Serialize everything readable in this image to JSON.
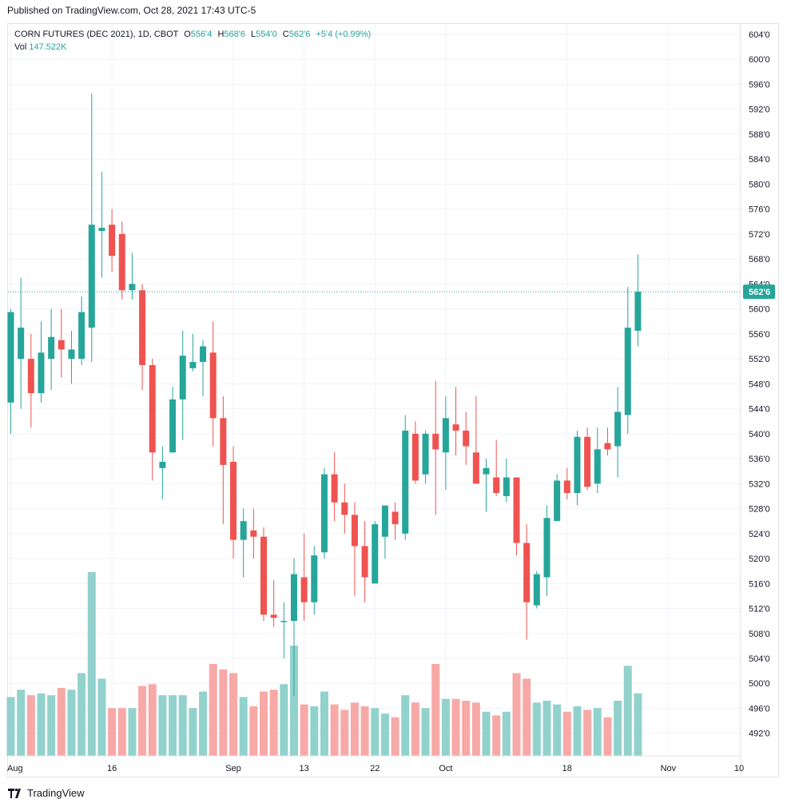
{
  "header": {
    "published": "Published on TradingView.com, Oct 28, 2021 17:43 UTC-5"
  },
  "legend": {
    "symbol": "CORN FUTURES (DEC 2021), 1D, CBOT",
    "o_label": "O",
    "o_value": "556'4",
    "h_label": "H",
    "h_value": "568'6",
    "l_label": "L",
    "l_value": "554'0",
    "c_label": "C",
    "c_value": "562'6",
    "change": "+5'4 (+0.99%)",
    "vol_label": "Vol",
    "vol_value": "147.522K"
  },
  "footer": {
    "brand": "TradingView"
  },
  "colors": {
    "up": "#26a69a",
    "down": "#ef5350",
    "vol_up": "#92d2cc",
    "vol_down": "#f7a9a7",
    "grid": "#f0f3fa"
  },
  "chart_data": {
    "type": "candlestick",
    "symbol": "CORN FUTURES (DEC 2021)",
    "interval": "1D",
    "exchange": "CBOT",
    "last_price_label": "562'6",
    "last_price": 562.75,
    "ylim": [
      489,
      605
    ],
    "y_ticks": [
      604,
      600,
      596,
      592,
      588,
      584,
      580,
      576,
      572,
      568,
      564,
      560,
      556,
      552,
      548,
      544,
      540,
      536,
      532,
      528,
      524,
      520,
      516,
      512,
      508,
      504,
      500,
      496,
      492
    ],
    "y_tick_labels": [
      "604'0",
      "600'0",
      "596'0",
      "592'0",
      "588'0",
      "584'0",
      "580'0",
      "576'0",
      "572'0",
      "568'0",
      "564'0",
      "560'0",
      "556'0",
      "552'0",
      "548'0",
      "544'0",
      "540'0",
      "536'0",
      "532'0",
      "528'0",
      "524'0",
      "520'0",
      "516'0",
      "512'0",
      "508'0",
      "504'0",
      "500'0",
      "496'0",
      "492'0"
    ],
    "x_ticks": [
      {
        "label": "Aug",
        "index": 0
      },
      {
        "label": "16",
        "index": 10
      },
      {
        "label": "Sep",
        "index": 22
      },
      {
        "label": "13",
        "index": 29
      },
      {
        "label": "22",
        "index": 36
      },
      {
        "label": "Oct",
        "index": 43
      },
      {
        "label": "18",
        "index": 55
      },
      {
        "label": "Nov",
        "index": 65
      },
      {
        "label": "10",
        "index": 72
      }
    ],
    "candles": [
      {
        "o": 545,
        "h": 560,
        "l": 540,
        "c": 559.5,
        "v": 0.32
      },
      {
        "o": 552,
        "h": 565,
        "l": 544,
        "c": 557,
        "v": 0.36
      },
      {
        "o": 552,
        "h": 556,
        "l": 541,
        "c": 546.5,
        "v": 0.33
      },
      {
        "o": 546.5,
        "h": 558,
        "l": 545,
        "c": 553,
        "v": 0.34
      },
      {
        "o": 552,
        "h": 560,
        "l": 547,
        "c": 555.5,
        "v": 0.33
      },
      {
        "o": 555,
        "h": 560,
        "l": 549,
        "c": 553.5,
        "v": 0.37
      },
      {
        "o": 552,
        "h": 556.5,
        "l": 548,
        "c": 553.5,
        "v": 0.36
      },
      {
        "o": 552,
        "h": 562,
        "l": 551,
        "c": 559.5,
        "v": 0.45
      },
      {
        "o": 557,
        "h": 594.5,
        "l": 551.5,
        "c": 573.5,
        "v": 1.0
      },
      {
        "o": 572.5,
        "h": 582,
        "l": 565,
        "c": 573,
        "v": 0.42
      },
      {
        "o": 573.5,
        "h": 576,
        "l": 566,
        "c": 568.5,
        "v": 0.26
      },
      {
        "o": 572,
        "h": 574,
        "l": 561.5,
        "c": 563,
        "v": 0.26
      },
      {
        "o": 563,
        "h": 569,
        "l": 561.5,
        "c": 564,
        "v": 0.26
      },
      {
        "o": 563,
        "h": 564,
        "l": 547,
        "c": 551,
        "v": 0.38
      },
      {
        "o": 551,
        "h": 552,
        "l": 532.5,
        "c": 537,
        "v": 0.39
      },
      {
        "o": 534.5,
        "h": 538,
        "l": 529.5,
        "c": 535.5,
        "v": 0.33
      },
      {
        "o": 537,
        "h": 547.5,
        "l": 537,
        "c": 545.5,
        "v": 0.33
      },
      {
        "o": 545.5,
        "h": 556.5,
        "l": 539,
        "c": 552.5,
        "v": 0.33
      },
      {
        "o": 550.5,
        "h": 556,
        "l": 550,
        "c": 551.5,
        "v": 0.26
      },
      {
        "o": 551.5,
        "h": 555,
        "l": 546,
        "c": 554,
        "v": 0.35
      },
      {
        "o": 553,
        "h": 558,
        "l": 538,
        "c": 542.5,
        "v": 0.5
      },
      {
        "o": 542.5,
        "h": 546,
        "l": 525.5,
        "c": 535,
        "v": 0.47
      },
      {
        "o": 535.5,
        "h": 538,
        "l": 520,
        "c": 523,
        "v": 0.45
      },
      {
        "o": 523,
        "h": 528,
        "l": 517,
        "c": 526,
        "v": 0.32
      },
      {
        "o": 524.5,
        "h": 528,
        "l": 520,
        "c": 523.5,
        "v": 0.27
      },
      {
        "o": 523.5,
        "h": 525,
        "l": 510,
        "c": 511,
        "v": 0.35
      },
      {
        "o": 511,
        "h": 516.5,
        "l": 509,
        "c": 510.5,
        "v": 0.36
      },
      {
        "o": 510,
        "h": 513,
        "l": 504,
        "c": 510,
        "v": 0.39
      },
      {
        "o": 510,
        "h": 520,
        "l": 498,
        "c": 517.5,
        "v": 0.6
      },
      {
        "o": 517,
        "h": 524,
        "l": 510,
        "c": 513,
        "v": 0.28
      },
      {
        "o": 513,
        "h": 522,
        "l": 511,
        "c": 520.5,
        "v": 0.27
      },
      {
        "o": 521,
        "h": 534.5,
        "l": 520,
        "c": 533.5,
        "v": 0.35
      },
      {
        "o": 533.5,
        "h": 537,
        "l": 526,
        "c": 529,
        "v": 0.28
      },
      {
        "o": 529,
        "h": 532,
        "l": 524,
        "c": 527,
        "v": 0.25
      },
      {
        "o": 527,
        "h": 529,
        "l": 514,
        "c": 522,
        "v": 0.29
      },
      {
        "o": 522,
        "h": 526,
        "l": 513,
        "c": 517,
        "v": 0.27
      },
      {
        "o": 516,
        "h": 526,
        "l": 516,
        "c": 525.5,
        "v": 0.26
      },
      {
        "o": 523.5,
        "h": 528.5,
        "l": 520,
        "c": 528.5,
        "v": 0.23
      },
      {
        "o": 527.5,
        "h": 529,
        "l": 523,
        "c": 525.5,
        "v": 0.21
      },
      {
        "o": 524,
        "h": 543,
        "l": 523,
        "c": 540.5,
        "v": 0.33
      },
      {
        "o": 540,
        "h": 542,
        "l": 532,
        "c": 532.5,
        "v": 0.29
      },
      {
        "o": 533.5,
        "h": 540.5,
        "l": 532,
        "c": 540,
        "v": 0.26
      },
      {
        "o": 540,
        "h": 548.5,
        "l": 527,
        "c": 537.5,
        "v": 0.5
      },
      {
        "o": 537,
        "h": 546,
        "l": 531,
        "c": 542.5,
        "v": 0.31
      },
      {
        "o": 541.5,
        "h": 547.5,
        "l": 536.5,
        "c": 540.5,
        "v": 0.31
      },
      {
        "o": 540.5,
        "h": 543.5,
        "l": 535,
        "c": 538,
        "v": 0.3
      },
      {
        "o": 537,
        "h": 546,
        "l": 532,
        "c": 532,
        "v": 0.29
      },
      {
        "o": 533.5,
        "h": 536,
        "l": 527.5,
        "c": 534.5,
        "v": 0.24
      },
      {
        "o": 533,
        "h": 539,
        "l": 530,
        "c": 530.5,
        "v": 0.22
      },
      {
        "o": 530,
        "h": 536,
        "l": 529,
        "c": 533,
        "v": 0.24
      },
      {
        "o": 533,
        "h": 533,
        "l": 520.5,
        "c": 522.5,
        "v": 0.45
      },
      {
        "o": 522.5,
        "h": 525.5,
        "l": 507,
        "c": 513,
        "v": 0.42
      },
      {
        "o": 512.5,
        "h": 518,
        "l": 512,
        "c": 517.5,
        "v": 0.29
      },
      {
        "o": 517,
        "h": 528.5,
        "l": 514,
        "c": 526.5,
        "v": 0.3
      },
      {
        "o": 526,
        "h": 533.5,
        "l": 526,
        "c": 532.5,
        "v": 0.28
      },
      {
        "o": 532.5,
        "h": 534.5,
        "l": 529.5,
        "c": 530.5,
        "v": 0.24
      },
      {
        "o": 530.5,
        "h": 540.5,
        "l": 528.5,
        "c": 539.5,
        "v": 0.27
      },
      {
        "o": 539.5,
        "h": 541,
        "l": 531,
        "c": 531.5,
        "v": 0.25
      },
      {
        "o": 532,
        "h": 541,
        "l": 530.5,
        "c": 537.5,
        "v": 0.26
      },
      {
        "o": 538.5,
        "h": 541,
        "l": 536.5,
        "c": 537.5,
        "v": 0.21
      },
      {
        "o": 538,
        "h": 547.5,
        "l": 533,
        "c": 543.5,
        "v": 0.3
      },
      {
        "o": 543,
        "h": 563.5,
        "l": 540,
        "c": 557,
        "v": 0.49
      },
      {
        "o": 556.5,
        "h": 568.75,
        "l": 554,
        "c": 562.75,
        "v": 0.34
      }
    ]
  }
}
